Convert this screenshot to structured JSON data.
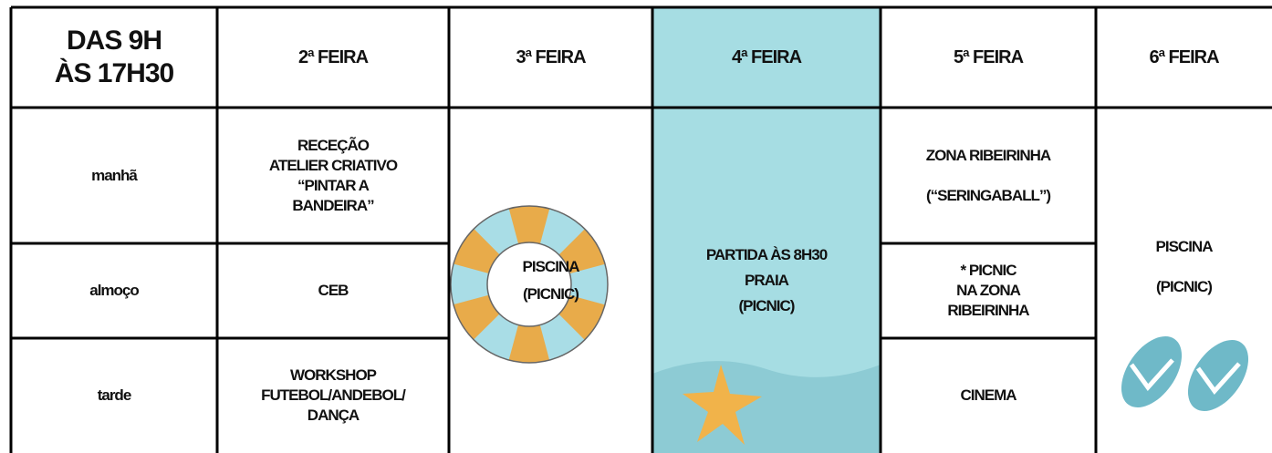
{
  "table": {
    "corner": [
      "DAS 9H",
      "ÀS 17H30"
    ],
    "days": [
      "2ª FEIRA",
      "3ª FEIRA",
      "4ª FEIRA",
      "5ª FEIRA",
      "6ª FEIRA"
    ],
    "periods": [
      "manhã",
      "almoço",
      "tarde"
    ],
    "monday": [
      [
        "RECEÇÃO",
        "ATELIER CRIATIVO",
        "“PINTAR A",
        "BANDEIRA”"
      ],
      [
        "CEB"
      ],
      [
        "WORKSHOP",
        "FUTEBOL/ANDEBOL/",
        "DANÇA"
      ]
    ],
    "tuesday": [
      "PISCINA",
      "(PICNIC)"
    ],
    "wednesday": [
      "PARTIDA ÀS 8H30",
      "PRAIA",
      "(PICNIC)"
    ],
    "thursday": [
      [
        "ZONA RIBEIRINHA",
        "(“SERINGABALL”)"
      ],
      [
        "* PICNIC",
        "NA ZONA",
        "RIBEIRINHA"
      ],
      [
        "CINEMA"
      ]
    ],
    "friday": [
      "PISCINA",
      "(PICNIC)"
    ]
  }
}
